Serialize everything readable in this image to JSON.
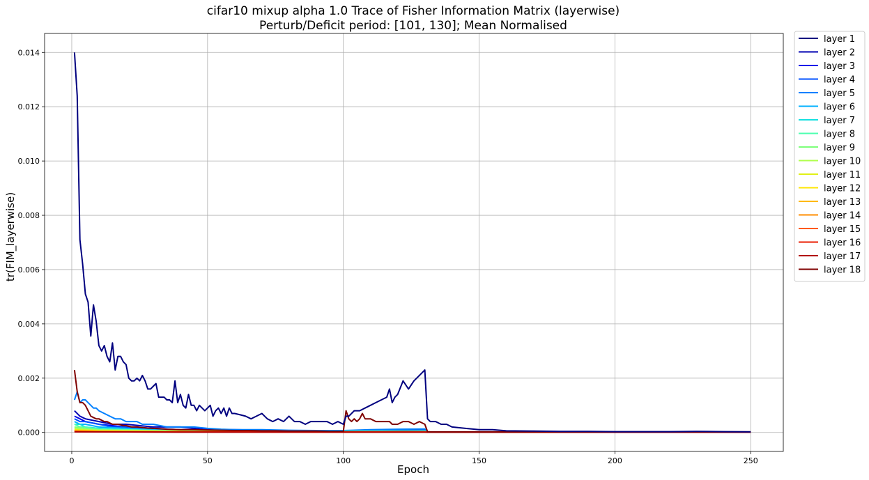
{
  "chart_data": {
    "type": "line",
    "title": "cifar10 mixup alpha 1.0 Trace of Fisher Information Matrix (layerwise)",
    "subtitle": "Perturb/Deficit period: [101, 130]; Mean Normalised",
    "xlabel": "Epoch",
    "ylabel": "tr(FIM_layerwise)",
    "xlim": [
      -10,
      262
    ],
    "ylim": [
      -0.0007,
      0.0147
    ],
    "xticks": [
      0,
      50,
      100,
      150,
      200,
      250
    ],
    "xtick_labels": [
      "0",
      "50",
      "100",
      "150",
      "200",
      "250"
    ],
    "yticks": [
      0.0,
      0.002,
      0.004,
      0.006,
      0.008,
      0.01,
      0.012,
      0.014
    ],
    "ytick_labels": [
      "0.000",
      "0.002",
      "0.004",
      "0.006",
      "0.008",
      "0.010",
      "0.012",
      "0.014"
    ],
    "grid": true,
    "legend_position": "outside-right-top",
    "series": [
      {
        "name": "layer 1",
        "color": "#00007f",
        "x": [
          1,
          2,
          3,
          4,
          5,
          6,
          7,
          8,
          9,
          10,
          11,
          12,
          13,
          14,
          15,
          16,
          17,
          18,
          19,
          20,
          21,
          22,
          23,
          24,
          25,
          26,
          27,
          28,
          29,
          30,
          31,
          32,
          33,
          34,
          35,
          36,
          37,
          38,
          39,
          40,
          41,
          42,
          43,
          44,
          45,
          46,
          47,
          48,
          49,
          50,
          51,
          52,
          53,
          54,
          55,
          56,
          57,
          58,
          59,
          60,
          62,
          64,
          66,
          68,
          70,
          72,
          74,
          76,
          78,
          80,
          82,
          84,
          86,
          88,
          90,
          92,
          94,
          96,
          98,
          100,
          101,
          102,
          104,
          106,
          108,
          110,
          112,
          114,
          116,
          117,
          118,
          119,
          120,
          122,
          124,
          126,
          128,
          130,
          131,
          132,
          134,
          136,
          138,
          140,
          145,
          150,
          155,
          160,
          170,
          180,
          190,
          200,
          210,
          220,
          230,
          240,
          250
        ],
        "y": [
          0.014,
          0.0124,
          0.0071,
          0.0062,
          0.0051,
          0.0048,
          0.00355,
          0.0047,
          0.0041,
          0.0032,
          0.003,
          0.0032,
          0.0028,
          0.0026,
          0.0033,
          0.0023,
          0.0028,
          0.0028,
          0.0026,
          0.0025,
          0.002,
          0.0019,
          0.0019,
          0.002,
          0.0019,
          0.0021,
          0.0019,
          0.0016,
          0.0016,
          0.0017,
          0.0018,
          0.0013,
          0.0013,
          0.0013,
          0.0012,
          0.0012,
          0.0011,
          0.0019,
          0.0011,
          0.0014,
          0.001,
          0.0009,
          0.0014,
          0.001,
          0.001,
          0.0008,
          0.001,
          0.0009,
          0.0008,
          0.0009,
          0.001,
          0.0006,
          0.0008,
          0.0009,
          0.0007,
          0.0009,
          0.0006,
          0.0009,
          0.0007,
          0.0007,
          0.00065,
          0.0006,
          0.0005,
          0.0006,
          0.0007,
          0.0005,
          0.0004,
          0.0005,
          0.0004,
          0.0006,
          0.0004,
          0.0004,
          0.0003,
          0.0004,
          0.0004,
          0.0004,
          0.0004,
          0.0003,
          0.0004,
          0.0003,
          0.0006,
          0.0006,
          0.0008,
          0.0008,
          0.0009,
          0.001,
          0.0011,
          0.0012,
          0.0013,
          0.0016,
          0.0011,
          0.0013,
          0.0014,
          0.0019,
          0.0016,
          0.0019,
          0.0021,
          0.0023,
          0.0005,
          0.0004,
          0.0004,
          0.0003,
          0.0003,
          0.0002,
          0.00015,
          0.0001,
          0.0001,
          6e-05,
          5e-05,
          4e-05,
          4e-05,
          3e-05,
          3e-05,
          3e-05,
          4e-05,
          3e-05,
          2e-05
        ]
      },
      {
        "name": "layer 2",
        "color": "#0000b2",
        "x": [
          1,
          3,
          5,
          10,
          15,
          20,
          30,
          40,
          50,
          60,
          70,
          80,
          90,
          100,
          110,
          120,
          130,
          131,
          140,
          160,
          200,
          250
        ],
        "y": [
          0.0008,
          0.0006,
          0.0005,
          0.0004,
          0.0003,
          0.0003,
          0.0002,
          0.0002,
          0.0001,
          0.0001,
          8e-05,
          6e-05,
          5e-05,
          5e-05,
          7e-05,
          9e-05,
          0.0001,
          2e-05,
          1e-05,
          1e-05,
          1e-05,
          1e-05
        ]
      },
      {
        "name": "layer 3",
        "color": "#0000ea",
        "x": [
          1,
          3,
          5,
          10,
          15,
          20,
          30,
          40,
          50,
          60,
          70,
          80,
          90,
          100,
          110,
          120,
          130,
          131,
          140,
          200,
          250
        ],
        "y": [
          0.0006,
          0.0005,
          0.0004,
          0.0003,
          0.00025,
          0.0002,
          0.00015,
          0.0001,
          0.0001,
          8e-05,
          6e-05,
          5e-05,
          4e-05,
          4e-05,
          5e-05,
          6e-05,
          7e-05,
          2e-05,
          1e-05,
          1e-05,
          1e-05
        ]
      },
      {
        "name": "layer 4",
        "color": "#0050ff",
        "x": [
          1,
          3,
          5,
          10,
          15,
          20,
          30,
          40,
          50,
          60,
          70,
          80,
          90,
          100,
          110,
          120,
          130,
          131,
          140,
          200,
          250
        ],
        "y": [
          0.0005,
          0.0004,
          0.0004,
          0.0003,
          0.0002,
          0.0002,
          0.00015,
          0.0001,
          8e-05,
          6e-05,
          5e-05,
          4e-05,
          3e-05,
          3e-05,
          4e-05,
          5e-05,
          6e-05,
          1e-05,
          1e-05,
          1e-05,
          1e-05
        ]
      },
      {
        "name": "layer 5",
        "color": "#0080ff",
        "x": [
          1,
          2,
          3,
          4,
          5,
          6,
          7,
          8,
          9,
          10,
          12,
          14,
          16,
          18,
          20,
          22,
          24,
          26,
          28,
          30,
          35,
          40,
          45,
          50,
          55,
          60,
          70,
          80,
          90,
          100,
          110,
          120,
          130,
          131,
          140,
          200,
          250
        ],
        "y": [
          0.0012,
          0.0015,
          0.0011,
          0.0012,
          0.0012,
          0.0011,
          0.001,
          0.0009,
          0.0009,
          0.0008,
          0.0007,
          0.0006,
          0.0005,
          0.0005,
          0.0004,
          0.0004,
          0.0004,
          0.0003,
          0.0003,
          0.0003,
          0.0002,
          0.0002,
          0.0002,
          0.00015,
          0.00012,
          0.0001,
          0.0001,
          8e-05,
          7e-05,
          7e-05,
          0.0001,
          0.00012,
          0.00013,
          2e-05,
          1e-05,
          1e-05,
          1e-05
        ]
      },
      {
        "name": "layer 6",
        "color": "#00b0ff",
        "x": [
          1,
          3,
          5,
          10,
          20,
          30,
          50,
          70,
          100,
          130,
          131,
          250
        ],
        "y": [
          0.0004,
          0.0003,
          0.0003,
          0.0002,
          0.00015,
          0.0001,
          8e-05,
          6e-05,
          5e-05,
          6e-05,
          1e-05,
          1e-05
        ]
      },
      {
        "name": "layer 7",
        "color": "#16e0e0",
        "x": [
          1,
          3,
          5,
          10,
          20,
          30,
          50,
          70,
          100,
          130,
          131,
          250
        ],
        "y": [
          0.0003,
          0.0003,
          0.0002,
          0.00015,
          0.0001,
          8e-05,
          6e-05,
          5e-05,
          4e-05,
          5e-05,
          1e-05,
          1e-05
        ]
      },
      {
        "name": "layer 8",
        "color": "#4dffb0",
        "x": [
          1,
          3,
          5,
          10,
          20,
          30,
          50,
          70,
          100,
          130,
          131,
          250
        ],
        "y": [
          0.0003,
          0.0002,
          0.0002,
          0.00012,
          0.0001,
          7e-05,
          5e-05,
          4e-05,
          3e-05,
          4e-05,
          1e-05,
          1e-05
        ]
      },
      {
        "name": "layer 9",
        "color": "#7dff7a",
        "x": [
          1,
          5,
          10,
          20,
          30,
          50,
          100,
          130,
          131,
          250
        ],
        "y": [
          0.0002,
          0.00015,
          0.0001,
          8e-05,
          6e-05,
          4e-05,
          3e-05,
          3e-05,
          1e-05,
          1e-05
        ]
      },
      {
        "name": "layer 10",
        "color": "#b0ff4d",
        "x": [
          1,
          5,
          10,
          20,
          50,
          100,
          130,
          131,
          250
        ],
        "y": [
          0.00015,
          0.0001,
          8e-05,
          6e-05,
          4e-05,
          3e-05,
          3e-05,
          1e-05,
          1e-05
        ]
      },
      {
        "name": "layer 11",
        "color": "#e0f016",
        "x": [
          1,
          5,
          10,
          20,
          50,
          100,
          130,
          131,
          250
        ],
        "y": [
          0.0001,
          8e-05,
          6e-05,
          5e-05,
          3e-05,
          2e-05,
          2e-05,
          1e-05,
          1e-05
        ]
      },
      {
        "name": "layer 12",
        "color": "#ffe600",
        "x": [
          1,
          10,
          50,
          100,
          130,
          131,
          250
        ],
        "y": [
          8e-05,
          5e-05,
          3e-05,
          2e-05,
          2e-05,
          1e-05,
          1e-05
        ]
      },
      {
        "name": "layer 13",
        "color": "#ffb900",
        "x": [
          1,
          10,
          50,
          100,
          130,
          131,
          250
        ],
        "y": [
          6e-05,
          4e-05,
          2e-05,
          2e-05,
          2e-05,
          1e-05,
          1e-05
        ]
      },
      {
        "name": "layer 14",
        "color": "#ff8c00",
        "x": [
          1,
          10,
          50,
          100,
          130,
          131,
          250
        ],
        "y": [
          5e-05,
          3e-05,
          2e-05,
          1e-05,
          1e-05,
          1e-05,
          1e-05
        ]
      },
      {
        "name": "layer 15",
        "color": "#ff5a00",
        "x": [
          1,
          10,
          50,
          100,
          130,
          131,
          250
        ],
        "y": [
          4e-05,
          3e-05,
          2e-05,
          1e-05,
          1e-05,
          1e-05,
          1e-05
        ]
      },
      {
        "name": "layer 16",
        "color": "#ea1d00",
        "x": [
          1,
          10,
          50,
          100,
          130,
          131,
          250
        ],
        "y": [
          3e-05,
          2e-05,
          1e-05,
          1e-05,
          1e-05,
          1e-05,
          1e-05
        ]
      },
      {
        "name": "layer 17",
        "color": "#b20000",
        "x": [
          1,
          10,
          50,
          100,
          130,
          131,
          250
        ],
        "y": [
          2e-05,
          2e-05,
          1e-05,
          1e-05,
          1e-05,
          5e-06,
          5e-06
        ]
      },
      {
        "name": "layer 18",
        "color": "#7f0000",
        "x": [
          1,
          2,
          3,
          4,
          5,
          6,
          7,
          8,
          9,
          10,
          11,
          12,
          13,
          14,
          15,
          16,
          17,
          18,
          19,
          20,
          22,
          24,
          26,
          28,
          30,
          35,
          40,
          45,
          50,
          55,
          60,
          65,
          70,
          75,
          80,
          85,
          90,
          95,
          99,
          100,
          101,
          102,
          103,
          104,
          105,
          106,
          107,
          108,
          110,
          112,
          114,
          116,
          117,
          118,
          120,
          122,
          124,
          126,
          128,
          130,
          131,
          132,
          135,
          140,
          150,
          160,
          170,
          180,
          190,
          200,
          210,
          220,
          230,
          240,
          250
        ],
        "y": [
          0.0023,
          0.0015,
          0.0011,
          0.0011,
          0.001,
          0.0008,
          0.0006,
          0.00055,
          0.0005,
          0.0005,
          0.00045,
          0.0004,
          0.0004,
          0.00035,
          0.0003,
          0.0003,
          0.0003,
          0.00028,
          0.00025,
          0.00025,
          0.0002,
          0.0002,
          0.00018,
          0.00016,
          0.00015,
          0.00012,
          0.0001,
          0.0001,
          9e-05,
          8e-05,
          7e-05,
          7e-05,
          6e-05,
          6e-05,
          5e-05,
          5e-05,
          5e-05,
          4e-05,
          4e-05,
          4e-05,
          0.0008,
          0.0005,
          0.0004,
          0.0005,
          0.0004,
          0.0005,
          0.0007,
          0.0005,
          0.0005,
          0.0004,
          0.0004,
          0.0004,
          0.0004,
          0.0003,
          0.0003,
          0.0004,
          0.0004,
          0.0003,
          0.0004,
          0.0003,
          3e-05,
          2e-05,
          2e-05,
          2e-05,
          2e-05,
          2e-05,
          2e-05,
          2e-05,
          2e-05,
          2e-05,
          2e-05,
          2e-05,
          2e-05,
          2e-05,
          2e-05
        ]
      }
    ]
  }
}
